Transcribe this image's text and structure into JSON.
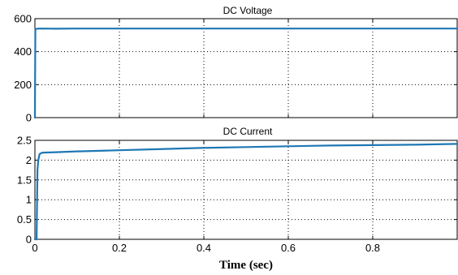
{
  "colors": {
    "series": "#1f77b4",
    "axes": "#000000",
    "background": "#ffffff"
  },
  "chart_data": [
    {
      "type": "line",
      "title": "DC Voltage",
      "xlabel": "",
      "ylabel": "",
      "xlim": [
        0,
        1
      ],
      "ylim": [
        0,
        600
      ],
      "grid": true,
      "x_ticks": [
        0,
        0.2,
        0.4,
        0.6,
        0.8
      ],
      "x_tick_labels": [
        "",
        "",
        "",
        "",
        ""
      ],
      "y_ticks": [
        0,
        200,
        400,
        600
      ],
      "y_tick_labels": [
        "0",
        "200",
        "400",
        "600"
      ],
      "series": [
        {
          "x": [
            0,
            0.001,
            0.003,
            0.01,
            0.05,
            0.1,
            0.2,
            0.3,
            0.4,
            0.5,
            0.6,
            0.7,
            0.8,
            0.9,
            1.0
          ],
          "values": [
            0,
            535,
            538,
            540,
            539,
            540,
            540,
            540,
            540,
            540,
            540,
            540,
            540,
            540,
            540
          ]
        }
      ]
    },
    {
      "type": "line",
      "title": "DC Current",
      "xlabel": "Time (sec)",
      "ylabel": "",
      "xlim": [
        0,
        1
      ],
      "ylim": [
        0,
        2.5
      ],
      "grid": true,
      "x_ticks": [
        0,
        0.2,
        0.4,
        0.6,
        0.8
      ],
      "x_tick_labels": [
        "0",
        "0.2",
        "0.4",
        "0.6",
        "0.8"
      ],
      "y_ticks": [
        0,
        0.5,
        1,
        1.5,
        2,
        2.5
      ],
      "y_tick_labels": [
        "0",
        "0.5",
        "1",
        "1.5",
        "2",
        "2.5"
      ],
      "series": [
        {
          "x": [
            0,
            0.004,
            0.006,
            0.008,
            0.011,
            0.015,
            0.02,
            0.05,
            0.1,
            0.2,
            0.3,
            0.4,
            0.5,
            0.6,
            0.7,
            0.8,
            0.9,
            1.0
          ],
          "values": [
            0,
            0,
            1.75,
            2.0,
            2.15,
            2.18,
            2.19,
            2.2,
            2.22,
            2.25,
            2.28,
            2.31,
            2.33,
            2.35,
            2.37,
            2.38,
            2.39,
            2.41
          ]
        }
      ]
    }
  ]
}
